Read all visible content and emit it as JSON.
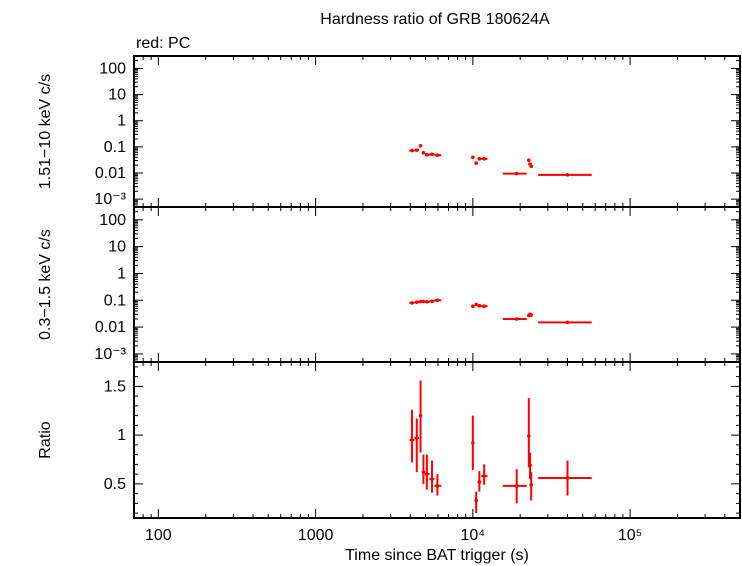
{
  "chart_data": [
    {
      "type": "scatter",
      "title": "Hardness ratio of GRB 180624A",
      "subtitle": "red: PC",
      "ylabel": "1.51−10 keV c/s",
      "xscale": "log",
      "yscale": "log",
      "xlim": [
        70,
        500000
      ],
      "ylim": [
        0.0005,
        300
      ],
      "yticks": [
        0.001,
        0.01,
        0.1,
        1,
        10,
        100
      ],
      "ytick_labels": [
        "10⁻³",
        "0.01",
        "0.1",
        "1",
        "10",
        "100"
      ],
      "color": "#ff0000",
      "points": [
        {
          "x": 4100,
          "y": 0.072,
          "xlo": 3950,
          "xhi": 4250
        },
        {
          "x": 4400,
          "y": 0.075,
          "xlo": 4250,
          "xhi": 4550
        },
        {
          "x": 4650,
          "y": 0.11,
          "xlo": 4550,
          "xhi": 4750
        },
        {
          "x": 4850,
          "y": 0.06,
          "xlo": 4750,
          "xhi": 4950
        },
        {
          "x": 5100,
          "y": 0.05,
          "xlo": 4950,
          "xhi": 5300
        },
        {
          "x": 5500,
          "y": 0.052,
          "xlo": 5300,
          "xhi": 5700
        },
        {
          "x": 5950,
          "y": 0.048,
          "xlo": 5700,
          "xhi": 6300
        },
        {
          "x": 10000,
          "y": 0.04,
          "xlo": 9800,
          "xhi": 10200
        },
        {
          "x": 10500,
          "y": 0.024,
          "xlo": 10300,
          "xhi": 10700
        },
        {
          "x": 11000,
          "y": 0.035,
          "xlo": 10700,
          "xhi": 11300
        },
        {
          "x": 11800,
          "y": 0.035,
          "xlo": 11300,
          "xhi": 12400
        },
        {
          "x": 19000,
          "y": 0.0095,
          "xlo": 15500,
          "xhi": 22000
        },
        {
          "x": 22700,
          "y": 0.031,
          "xlo": 22500,
          "xhi": 22900
        },
        {
          "x": 23100,
          "y": 0.022,
          "xlo": 22900,
          "xhi": 23300
        },
        {
          "x": 23500,
          "y": 0.018,
          "xlo": 23300,
          "xhi": 23700
        },
        {
          "x": 40000,
          "y": 0.0085,
          "xlo": 26000,
          "xhi": 57000
        }
      ]
    },
    {
      "type": "scatter",
      "ylabel": "0.3−1.5 keV c/s",
      "xscale": "log",
      "yscale": "log",
      "xlim": [
        70,
        500000
      ],
      "ylim": [
        0.0005,
        300
      ],
      "yticks": [
        0.001,
        0.01,
        0.1,
        1,
        10,
        100
      ],
      "ytick_labels": [
        "10⁻³",
        "0.01",
        "0.1",
        "1",
        "10",
        "100"
      ],
      "color": "#ff0000",
      "points": [
        {
          "x": 4100,
          "y": 0.08,
          "xlo": 3950,
          "xhi": 4250
        },
        {
          "x": 4400,
          "y": 0.085,
          "xlo": 4250,
          "xhi": 4550
        },
        {
          "x": 4650,
          "y": 0.09,
          "xlo": 4550,
          "xhi": 4750
        },
        {
          "x": 4850,
          "y": 0.09,
          "xlo": 4750,
          "xhi": 4950
        },
        {
          "x": 5100,
          "y": 0.088,
          "xlo": 4950,
          "xhi": 5300
        },
        {
          "x": 5500,
          "y": 0.092,
          "xlo": 5300,
          "xhi": 5700
        },
        {
          "x": 5950,
          "y": 0.1,
          "xlo": 5700,
          "xhi": 6300
        },
        {
          "x": 10000,
          "y": 0.06,
          "xlo": 9800,
          "xhi": 10200
        },
        {
          "x": 10500,
          "y": 0.07,
          "xlo": 10300,
          "xhi": 10700
        },
        {
          "x": 11000,
          "y": 0.062,
          "xlo": 10700,
          "xhi": 11300
        },
        {
          "x": 11800,
          "y": 0.06,
          "xlo": 11300,
          "xhi": 12400
        },
        {
          "x": 19000,
          "y": 0.02,
          "xlo": 15500,
          "xhi": 22000
        },
        {
          "x": 22700,
          "y": 0.027,
          "xlo": 22500,
          "xhi": 22900
        },
        {
          "x": 23100,
          "y": 0.03,
          "xlo": 22900,
          "xhi": 23300
        },
        {
          "x": 23500,
          "y": 0.028,
          "xlo": 23300,
          "xhi": 23700
        },
        {
          "x": 40000,
          "y": 0.015,
          "xlo": 26000,
          "xhi": 57000
        }
      ]
    },
    {
      "type": "scatter",
      "ylabel": "Ratio",
      "xlabel": "Time since BAT trigger (s)",
      "xscale": "log",
      "yscale": "linear",
      "xlim": [
        70,
        500000
      ],
      "ylim": [
        0.15,
        1.75
      ],
      "yticks": [
        0.5,
        1,
        1.5
      ],
      "ytick_labels": [
        "0.5",
        "1",
        "1.5"
      ],
      "xticks": [
        100,
        1000,
        10000,
        100000
      ],
      "xtick_labels": [
        "100",
        "1000",
        "10⁴",
        "10⁵"
      ],
      "color": "#ff0000",
      "points": [
        {
          "x": 4100,
          "y": 0.95,
          "xlo": 3950,
          "xhi": 4250,
          "ylo": 0.72,
          "yhi": 1.26
        },
        {
          "x": 4400,
          "y": 0.97,
          "xlo": 4250,
          "xhi": 4550,
          "ylo": 0.62,
          "yhi": 1.17
        },
        {
          "x": 4650,
          "y": 1.2,
          "xlo": 4550,
          "xhi": 4750,
          "ylo": 0.82,
          "yhi": 1.56
        },
        {
          "x": 4850,
          "y": 0.62,
          "xlo": 4750,
          "xhi": 4950,
          "ylo": 0.5,
          "yhi": 0.8
        },
        {
          "x": 5100,
          "y": 0.6,
          "xlo": 4950,
          "xhi": 5300,
          "ylo": 0.44,
          "yhi": 0.8
        },
        {
          "x": 5500,
          "y": 0.55,
          "xlo": 5300,
          "xhi": 5700,
          "ylo": 0.41,
          "yhi": 0.74
        },
        {
          "x": 5950,
          "y": 0.48,
          "xlo": 5700,
          "xhi": 6300,
          "ylo": 0.38,
          "yhi": 0.6
        },
        {
          "x": 10000,
          "y": 0.92,
          "xlo": 9800,
          "xhi": 10200,
          "ylo": 0.64,
          "yhi": 1.2
        },
        {
          "x": 10500,
          "y": 0.33,
          "xlo": 10300,
          "xhi": 10700,
          "ylo": 0.2,
          "yhi": 0.42
        },
        {
          "x": 11000,
          "y": 0.52,
          "xlo": 10700,
          "xhi": 11300,
          "ylo": 0.42,
          "yhi": 0.63
        },
        {
          "x": 11800,
          "y": 0.58,
          "xlo": 11300,
          "xhi": 12400,
          "ylo": 0.49,
          "yhi": 0.7
        },
        {
          "x": 19000,
          "y": 0.48,
          "xlo": 15500,
          "xhi": 22000,
          "ylo": 0.3,
          "yhi": 0.65
        },
        {
          "x": 22700,
          "y": 0.99,
          "xlo": 22500,
          "xhi": 22900,
          "ylo": 0.67,
          "yhi": 1.38
        },
        {
          "x": 23100,
          "y": 0.69,
          "xlo": 22900,
          "xhi": 23300,
          "ylo": 0.55,
          "yhi": 0.82
        },
        {
          "x": 23500,
          "y": 0.49,
          "xlo": 23300,
          "xhi": 23700,
          "ylo": 0.33,
          "yhi": 0.62
        },
        {
          "x": 40000,
          "y": 0.56,
          "xlo": 26000,
          "xhi": 57000,
          "ylo": 0.38,
          "yhi": 0.74
        }
      ]
    }
  ]
}
